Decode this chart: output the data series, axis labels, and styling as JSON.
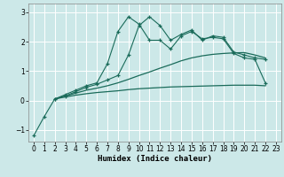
{
  "xlabel": "Humidex (Indice chaleur)",
  "background_color": "#cce8e8",
  "grid_color": "#ffffff",
  "line_color": "#1a6b5a",
  "xlim": [
    -0.5,
    23.5
  ],
  "ylim": [
    -1.4,
    3.3
  ],
  "yticks": [
    -1,
    0,
    1,
    2,
    3
  ],
  "xticks": [
    0,
    1,
    2,
    3,
    4,
    5,
    6,
    7,
    8,
    9,
    10,
    11,
    12,
    13,
    14,
    15,
    16,
    17,
    18,
    19,
    20,
    21,
    22,
    23
  ],
  "lines": [
    {
      "x": [
        0,
        1,
        2,
        3,
        4,
        5,
        6,
        7,
        8,
        9,
        10,
        11,
        12,
        13,
        14,
        15,
        16,
        17,
        18,
        19,
        20,
        21,
        22
      ],
      "y": [
        -1.2,
        -0.55,
        0.05,
        0.2,
        0.35,
        0.5,
        0.6,
        1.25,
        2.35,
        2.85,
        2.6,
        2.05,
        2.05,
        1.75,
        2.2,
        2.35,
        2.1,
        2.15,
        2.1,
        1.6,
        1.45,
        1.4,
        0.6
      ],
      "marker": true
    },
    {
      "x": [
        2,
        3,
        4,
        5,
        6,
        7,
        8,
        9,
        10,
        11,
        12,
        13,
        14,
        15,
        16,
        17,
        18,
        19,
        20,
        21,
        22
      ],
      "y": [
        0.05,
        0.15,
        0.3,
        0.45,
        0.55,
        0.7,
        0.85,
        1.55,
        2.55,
        2.85,
        2.55,
        2.05,
        2.25,
        2.4,
        2.05,
        2.2,
        2.15,
        1.65,
        1.55,
        1.45,
        1.4
      ],
      "marker": true
    },
    {
      "x": [
        2,
        3,
        4,
        5,
        6,
        7,
        8,
        9,
        10,
        11,
        12,
        13,
        14,
        15,
        16,
        17,
        18,
        19,
        20,
        21,
        22
      ],
      "y": [
        0.05,
        0.15,
        0.25,
        0.35,
        0.42,
        0.5,
        0.6,
        0.72,
        0.85,
        0.97,
        1.1,
        1.22,
        1.35,
        1.45,
        1.52,
        1.57,
        1.6,
        1.62,
        1.63,
        1.55,
        1.45
      ],
      "marker": false
    },
    {
      "x": [
        2,
        3,
        4,
        5,
        6,
        7,
        8,
        9,
        10,
        11,
        12,
        13,
        14,
        15,
        16,
        17,
        18,
        19,
        20,
        21,
        22
      ],
      "y": [
        0.05,
        0.12,
        0.18,
        0.23,
        0.27,
        0.3,
        0.33,
        0.37,
        0.4,
        0.42,
        0.44,
        0.46,
        0.47,
        0.48,
        0.49,
        0.5,
        0.51,
        0.52,
        0.52,
        0.52,
        0.5
      ],
      "marker": false
    }
  ]
}
